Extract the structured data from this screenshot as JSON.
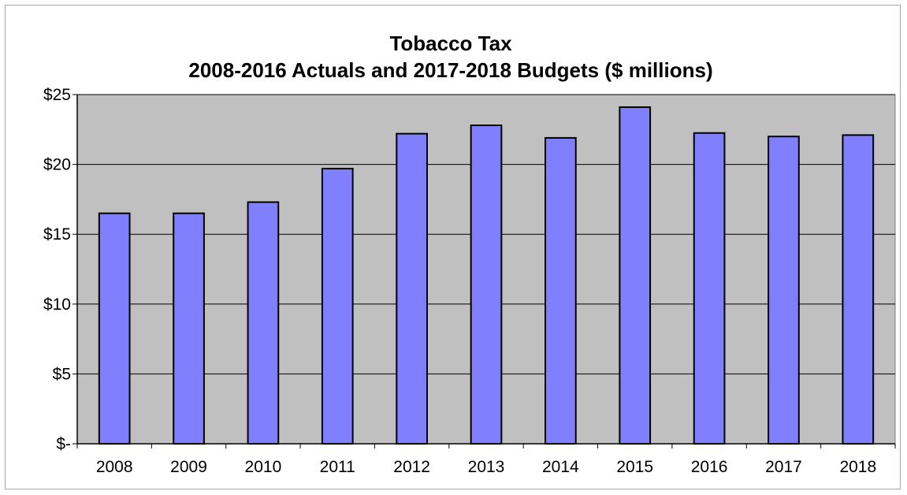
{
  "chart_data": {
    "type": "bar",
    "title": "Tobacco Tax",
    "subtitle": "2008-2016 Actuals and 2017-2018 Budgets ($ millions)",
    "xlabel": "",
    "ylabel": "",
    "categories": [
      "2008",
      "2009",
      "2010",
      "2011",
      "2012",
      "2013",
      "2014",
      "2015",
      "2016",
      "2017",
      "2018"
    ],
    "values": [
      16.5,
      16.5,
      17.3,
      19.7,
      22.2,
      22.8,
      21.9,
      24.1,
      22.25,
      22.0,
      22.1
    ],
    "ylim": [
      0,
      25
    ],
    "yticks": [
      0,
      5,
      10,
      15,
      20,
      25
    ],
    "ytick_labels": [
      "$-",
      "$5",
      "$10",
      "$15",
      "$20",
      "$25"
    ],
    "grid": true,
    "legend": "none",
    "colors": {
      "bar_fill": "#8080ff",
      "bar_stroke": "#000000",
      "plot_background": "#c0c0c0",
      "gridline": "#000000"
    }
  }
}
